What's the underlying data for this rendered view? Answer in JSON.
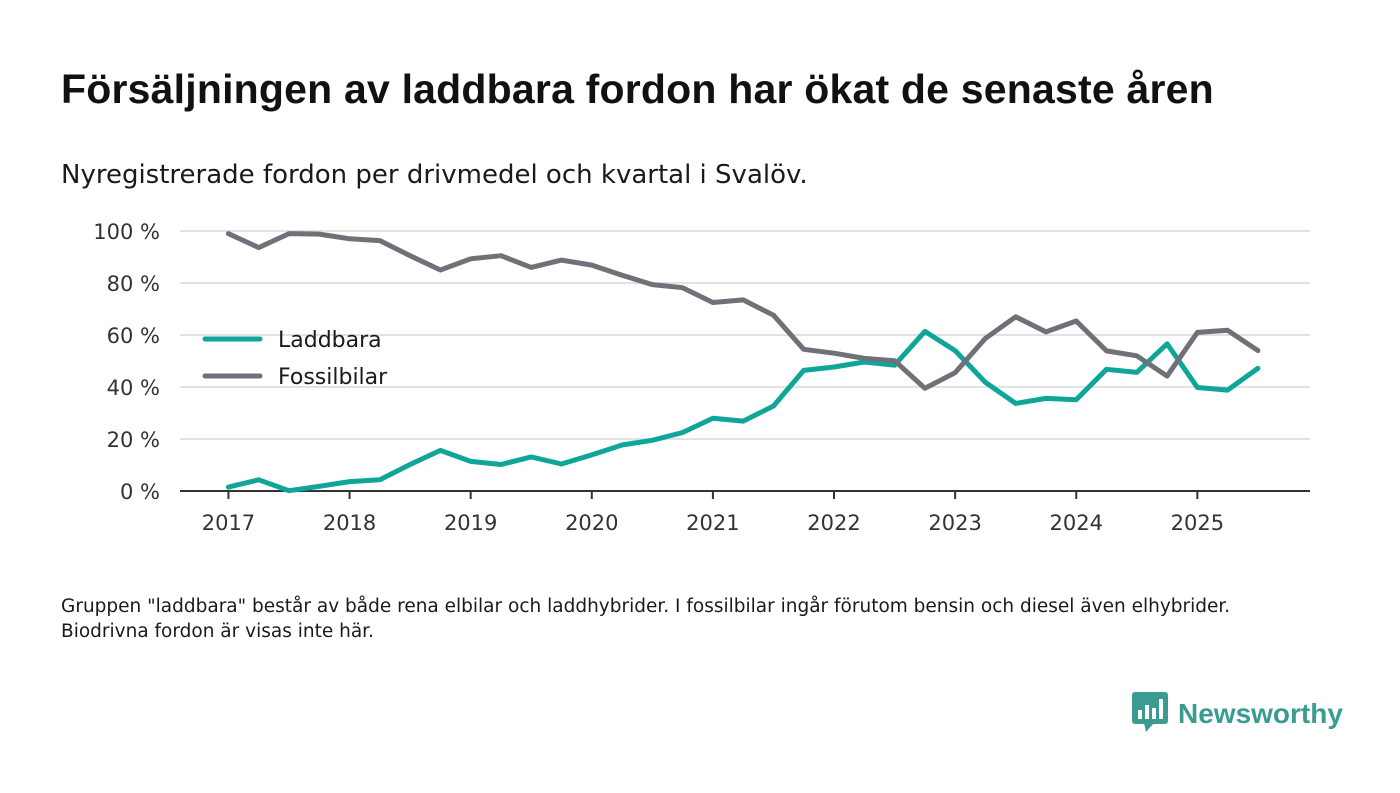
{
  "header": {
    "title": "Försäljningen av laddbara fordon har ökat de senaste åren",
    "subtitle": "Nyregistrerade fordon per drivmedel och kvartal i Svalöv."
  },
  "footnote": "Gruppen \"laddbara\" består av både rena elbilar och laddhybrider. I fossilbilar ingår förutom bensin och diesel även elhybrider. Biodrivna fordon är visas inte här.",
  "brand": {
    "name": "Newsworthy",
    "icon": "newsworthy-logo-icon"
  },
  "colors": {
    "laddbara": "#0fa599",
    "fossilbilar": "#707079",
    "grid": "#d8d8d8",
    "axis": "#333333",
    "brand": "#3a9c90"
  },
  "chart_data": {
    "type": "line",
    "title": "Försäljningen av laddbara fordon har ökat de senaste åren",
    "xlabel": "",
    "ylabel": "",
    "ylim": [
      0,
      100
    ],
    "y_ticks": [
      {
        "value": 0,
        "label": "0 %"
      },
      {
        "value": 20,
        "label": "20 %"
      },
      {
        "value": 40,
        "label": "40 %"
      },
      {
        "value": 60,
        "label": "60 %"
      },
      {
        "value": 80,
        "label": "80 %"
      },
      {
        "value": 100,
        "label": "100 %"
      }
    ],
    "x_ticks": [
      {
        "value": 2017,
        "label": "2017"
      },
      {
        "value": 2018,
        "label": "2018"
      },
      {
        "value": 2019,
        "label": "2019"
      },
      {
        "value": 2020,
        "label": "2020"
      },
      {
        "value": 2021,
        "label": "2021"
      },
      {
        "value": 2022,
        "label": "2022"
      },
      {
        "value": 2023,
        "label": "2023"
      },
      {
        "value": 2024,
        "label": "2024"
      },
      {
        "value": 2025,
        "label": "2025"
      }
    ],
    "xlim": [
      2016.6,
      2025.93
    ],
    "legend_position": "left",
    "x": [
      2017.0,
      2017.25,
      2017.5,
      2017.75,
      2018.0,
      2018.25,
      2018.5,
      2018.75,
      2019.0,
      2019.25,
      2019.5,
      2019.75,
      2020.0,
      2020.25,
      2020.5,
      2020.75,
      2021.0,
      2021.25,
      2021.5,
      2021.75,
      2022.0,
      2022.25,
      2022.5,
      2022.75,
      2023.0,
      2023.25,
      2023.5,
      2023.75,
      2024.0,
      2024.25,
      2024.5,
      2024.75,
      2025.0,
      2025.25,
      2025.5
    ],
    "series": [
      {
        "name": "Laddbara",
        "color": "#0fa599",
        "values": [
          1.5,
          4.3,
          0.1,
          1.8,
          3.6,
          4.3,
          10.2,
          15.6,
          11.4,
          10.2,
          13.1,
          10.4,
          13.9,
          17.7,
          19.5,
          22.5,
          28.0,
          26.9,
          32.7,
          46.4,
          47.7,
          49.6,
          48.4,
          61.4,
          54.0,
          41.8,
          33.7,
          35.6,
          35.1,
          46.8,
          45.6,
          56.6,
          39.8,
          38.8,
          47.2
        ]
      },
      {
        "name": "Fossilbilar",
        "color": "#707079",
        "values": [
          99.0,
          93.6,
          99.0,
          98.8,
          97.0,
          96.3,
          90.5,
          85.0,
          89.3,
          90.5,
          86.0,
          88.8,
          86.9,
          83.0,
          79.4,
          78.2,
          72.5,
          73.5,
          67.6,
          54.5,
          53.0,
          51.0,
          50.1,
          39.5,
          45.5,
          58.7,
          67.0,
          61.2,
          65.4,
          53.9,
          52.0,
          44.2,
          61.0,
          61.8,
          54.0
        ]
      }
    ]
  }
}
